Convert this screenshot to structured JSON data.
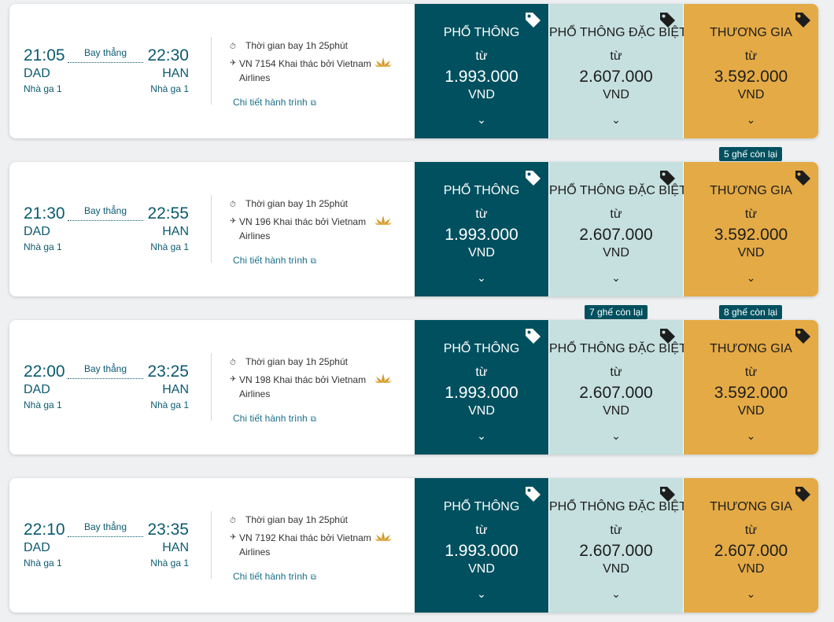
{
  "labels": {
    "direct": "Bay thẳng",
    "terminal": "Nhà ga 1",
    "duration": "Thời gian bay 1h 25phút",
    "details": "Chi tiết hành trình",
    "from": "từ",
    "currency": "VND"
  },
  "fare_names": {
    "economy": "PHỔ THÔNG",
    "premium_economy": "PHỔ THÔNG ĐẶC BIỆT",
    "business": "THƯƠNG GIA"
  },
  "icons": {
    "duration": "stopwatch-icon",
    "flight": "plane-icon",
    "airline": "lotus-logo",
    "details": "external-link-icon",
    "fare_tag": "tag-icon",
    "expand": "chevron-down-icon"
  },
  "colors": {
    "primary": "#00505f",
    "premium": "#c5e0de",
    "business": "#e4aa45",
    "text_link": "#1a6f8a"
  },
  "flights": [
    {
      "dep_time": "21:05",
      "arr_time": "22:30",
      "dep_code": "DAD",
      "arr_code": "HAN",
      "flight_info": "VN 7154 Khai thác bởi Vietnam Airlines",
      "economy_price": "1.993.000",
      "premium_price": "2.607.000",
      "business_price": "3.592.000",
      "premium_seats": "",
      "business_seats": ""
    },
    {
      "dep_time": "21:30",
      "arr_time": "22:55",
      "dep_code": "DAD",
      "arr_code": "HAN",
      "flight_info": "VN 196 Khai thác bởi Vietnam Airlines",
      "economy_price": "1.993.000",
      "premium_price": "2.607.000",
      "business_price": "3.592.000",
      "premium_seats": "",
      "business_seats": "5 ghế còn lại"
    },
    {
      "dep_time": "22:00",
      "arr_time": "23:25",
      "dep_code": "DAD",
      "arr_code": "HAN",
      "flight_info": "VN 198 Khai thác bởi Vietnam Airlines",
      "economy_price": "1.993.000",
      "premium_price": "2.607.000",
      "business_price": "3.592.000",
      "premium_seats": "7 ghế còn lại",
      "business_seats": "8 ghế còn lại"
    },
    {
      "dep_time": "22:10",
      "arr_time": "23:35",
      "dep_code": "DAD",
      "arr_code": "HAN",
      "flight_info": "VN 7192 Khai thác bởi Vietnam Airlines",
      "economy_price": "1.993.000",
      "premium_price": "2.607.000",
      "business_price": "2.607.000",
      "premium_seats": "",
      "business_seats": ""
    }
  ]
}
